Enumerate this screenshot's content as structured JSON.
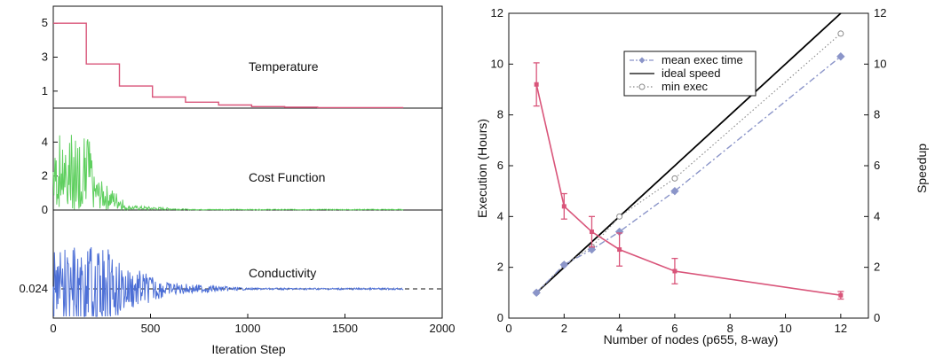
{
  "chart_data": [
    {
      "type": "line",
      "layout": "three stacked panels sharing x axis",
      "xlabel": "Iteration Step",
      "xlim": [
        0,
        2000
      ],
      "xticks": [
        0,
        500,
        1000,
        1500,
        2000
      ],
      "panels": [
        {
          "label": "Temperature",
          "color": "#d9557a",
          "yticks": [
            1,
            3,
            5
          ],
          "ylim": [
            0,
            6
          ],
          "steps": [
            [
              0,
              5
            ],
            [
              170,
              5
            ],
            [
              170,
              2.6
            ],
            [
              340,
              2.6
            ],
            [
              340,
              1.3
            ],
            [
              510,
              1.3
            ],
            [
              510,
              0.65
            ],
            [
              680,
              0.65
            ],
            [
              680,
              0.35
            ],
            [
              850,
              0.35
            ],
            [
              850,
              0.18
            ],
            [
              1020,
              0.18
            ],
            [
              1020,
              0.09
            ],
            [
              1190,
              0.09
            ],
            [
              1190,
              0.05
            ],
            [
              1360,
              0.05
            ],
            [
              1360,
              0.03
            ],
            [
              1800,
              0.03
            ]
          ]
        },
        {
          "label": "Cost Function",
          "color": "#5fcf5f",
          "yticks": [
            0,
            2,
            4
          ],
          "ylim": [
            0,
            6
          ],
          "noise_decay": "high amplitude (up to ~4.5) before iteration ~350, near 0 afterwards",
          "end_x": 1800
        },
        {
          "label": "Conductivity",
          "color": "#4d6fd6",
          "ytick_labels": [
            "0.024"
          ],
          "reference_line": 0.024,
          "reference_style": "dashed",
          "noise_decay": "large oscillations before iteration ~300, decaying to the 0.024 level by ~1000",
          "end_x": 1800
        }
      ]
    },
    {
      "type": "line",
      "xlabel": "Number of nodes (p655, 8-way)",
      "ylabel_left": "Execution (Hours)",
      "ylabel_right": "Speedup",
      "ylabel_left_color": "#e07a95",
      "ylabel_right_color": "#8b95c9",
      "xlim": [
        0,
        13
      ],
      "ylim_left": [
        0,
        12
      ],
      "ylim_right": [
        0,
        12
      ],
      "xticks": [
        0,
        2,
        4,
        6,
        8,
        10,
        12
      ],
      "yticks": [
        0,
        2,
        4,
        6,
        8,
        10,
        12
      ],
      "execution_series": {
        "color": "#d9557a",
        "x": [
          1,
          2,
          3,
          4,
          6,
          12
        ],
        "y": [
          9.2,
          4.4,
          3.4,
          2.7,
          1.85,
          0.9
        ],
        "err": [
          0.85,
          0.5,
          0.6,
          0.65,
          0.5,
          0.15
        ]
      },
      "series": [
        {
          "name": "mean exec time",
          "style": "dash-dot with diamond markers",
          "color": "#8b95c9",
          "x": [
            1,
            2,
            3,
            4,
            6,
            12
          ],
          "y": [
            1.0,
            2.1,
            2.7,
            3.4,
            5.0,
            10.3
          ]
        },
        {
          "name": "ideal speed",
          "style": "solid",
          "color": "#000000",
          "x": [
            1,
            12
          ],
          "y": [
            1,
            12
          ]
        },
        {
          "name": "min exec",
          "style": "dotted with circle markers",
          "color": "#888888",
          "x": [
            1,
            2,
            3,
            4,
            6,
            12
          ],
          "y": [
            1.0,
            2.1,
            2.8,
            4.0,
            5.5,
            11.2
          ]
        }
      ],
      "legend_placement": "top-center"
    }
  ]
}
